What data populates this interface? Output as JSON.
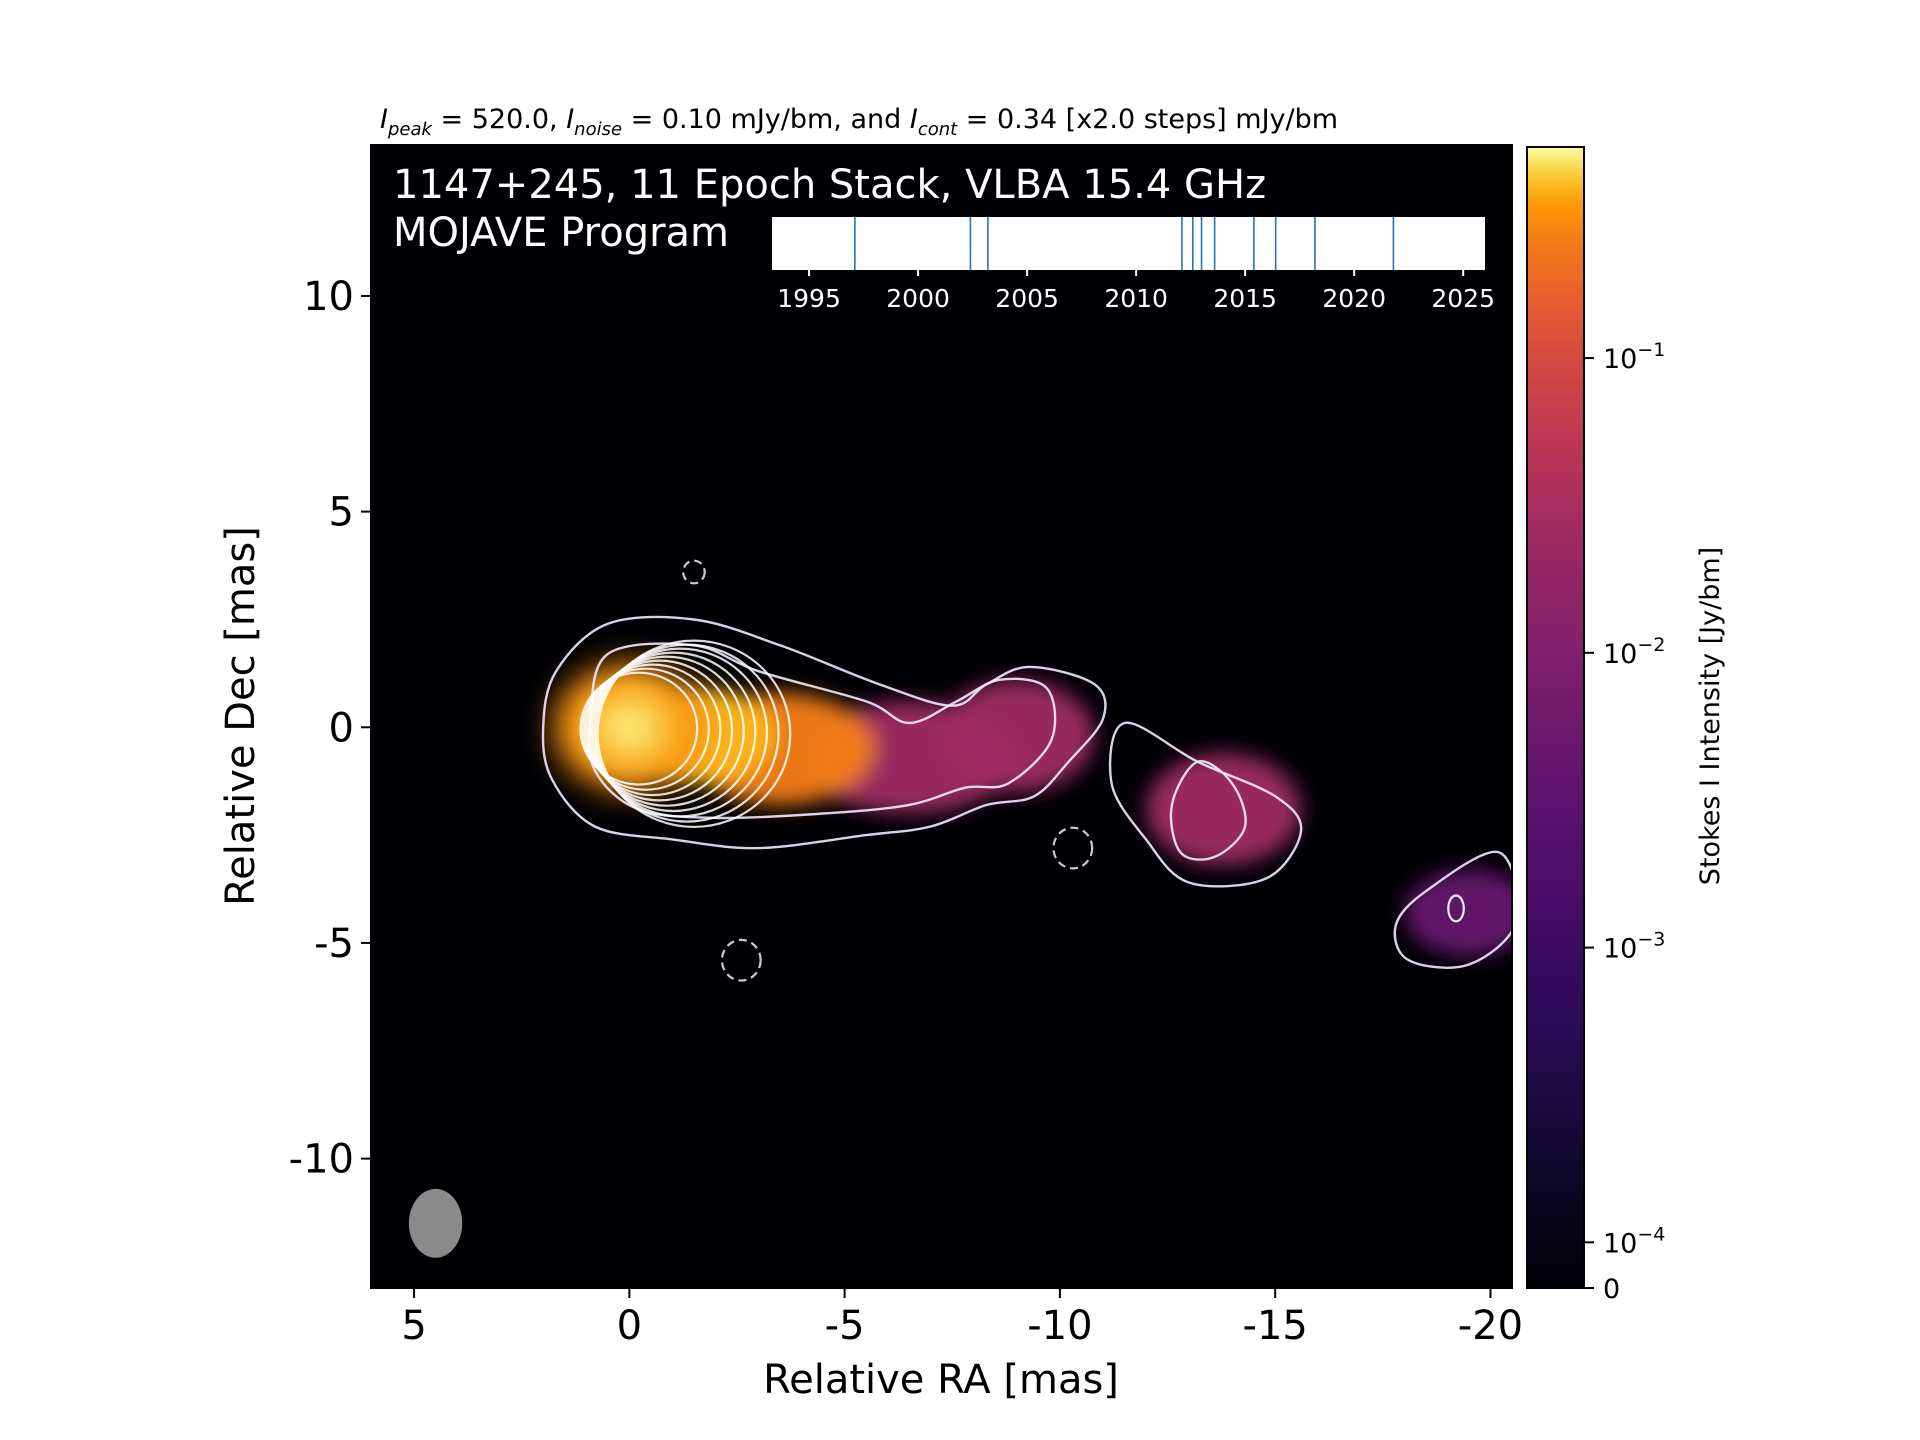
{
  "header": {
    "stats_line": {
      "i_peak": "I",
      "peak_sub": "peak",
      "peak_val": " = 520.0, ",
      "i_noise": "I",
      "noise_sub": "noise",
      "noise_val": " = 0.10 mJy/bm, and ",
      "i_cont": "I",
      "cont_sub": "cont",
      "cont_val": " = 0.34 [x2.0 steps] mJy/bm"
    }
  },
  "chart_data": {
    "type": "heatmap",
    "title_line1": "1147+245, 11 Epoch Stack, VLBA 15.4 GHz",
    "title_line2": "MOJAVE Program",
    "xlabel": "Relative RA [mas]",
    "ylabel": "Relative Dec [mas]",
    "xlim": [
      6.0,
      -20.5
    ],
    "ylim": [
      -13.0,
      13.5
    ],
    "x_ticks": [
      5,
      0,
      -5,
      -10,
      -15,
      -20
    ],
    "x_tick_labels": [
      "5",
      "0",
      "-5",
      "-10",
      "-15",
      "-20"
    ],
    "y_ticks": [
      10,
      5,
      0,
      -5,
      -10
    ],
    "y_tick_labels": [
      "10",
      "5",
      "0",
      "-5",
      "-10"
    ],
    "grid": false,
    "colormap": "inferno",
    "background_color": "#000004",
    "colorbar": {
      "label": "Stokes I Intensity [Jy/bm]",
      "scale": "log",
      "ticks": [
        {
          "value": 0.1,
          "base": "10",
          "exp": "−1"
        },
        {
          "value": 0.01,
          "base": "10",
          "exp": "−2"
        },
        {
          "value": 0.001,
          "base": "10",
          "exp": "−3"
        },
        {
          "value": 0.0001,
          "base": "10",
          "exp": "−4"
        },
        {
          "value": 0,
          "base": "0",
          "exp": ""
        }
      ]
    },
    "emission_components": [
      {
        "ra": 0.0,
        "dec": 0.0,
        "flux": 0.52,
        "sx": 0.9,
        "sy": 0.9
      },
      {
        "ra": -1.8,
        "dec": -0.2,
        "flux": 0.09,
        "sx": 1.6,
        "sy": 1.1
      },
      {
        "ra": -3.5,
        "dec": -0.5,
        "flux": 0.02,
        "sx": 2.2,
        "sy": 1.3
      },
      {
        "ra": -6.5,
        "dec": -0.7,
        "flux": 0.003,
        "sx": 2.5,
        "sy": 1.3
      },
      {
        "ra": -9.0,
        "dec": -0.2,
        "flux": 0.0025,
        "sx": 1.8,
        "sy": 1.3
      },
      {
        "ra": -13.8,
        "dec": -1.9,
        "flux": 0.0018,
        "sx": 1.8,
        "sy": 1.3
      },
      {
        "ra": -19.5,
        "dec": -4.3,
        "flux": 0.0014,
        "sx": 1.5,
        "sy": 1.0
      }
    ],
    "negative_contours": [
      {
        "ra": -1.5,
        "dec": 3.6
      },
      {
        "ra": -10.3,
        "dec": -2.8
      },
      {
        "ra": -2.6,
        "dec": -5.4
      }
    ],
    "beam": {
      "ra": 4.5,
      "dec": -11.5
    },
    "epoch_timeline": {
      "xlim": [
        1993.3,
        2026.0
      ],
      "ticks": [
        1995,
        2000,
        2005,
        2010,
        2015,
        2020,
        2025
      ],
      "tick_labels": [
        "1995",
        "2000",
        "2005",
        "2010",
        "2015",
        "2020",
        "2025"
      ],
      "epochs": [
        1997.1,
        2002.4,
        2003.2,
        2012.1,
        2012.6,
        2013.0,
        2013.6,
        2015.4,
        2016.4,
        2018.2,
        2021.8
      ],
      "epoch_color": "#1f77b4"
    }
  }
}
